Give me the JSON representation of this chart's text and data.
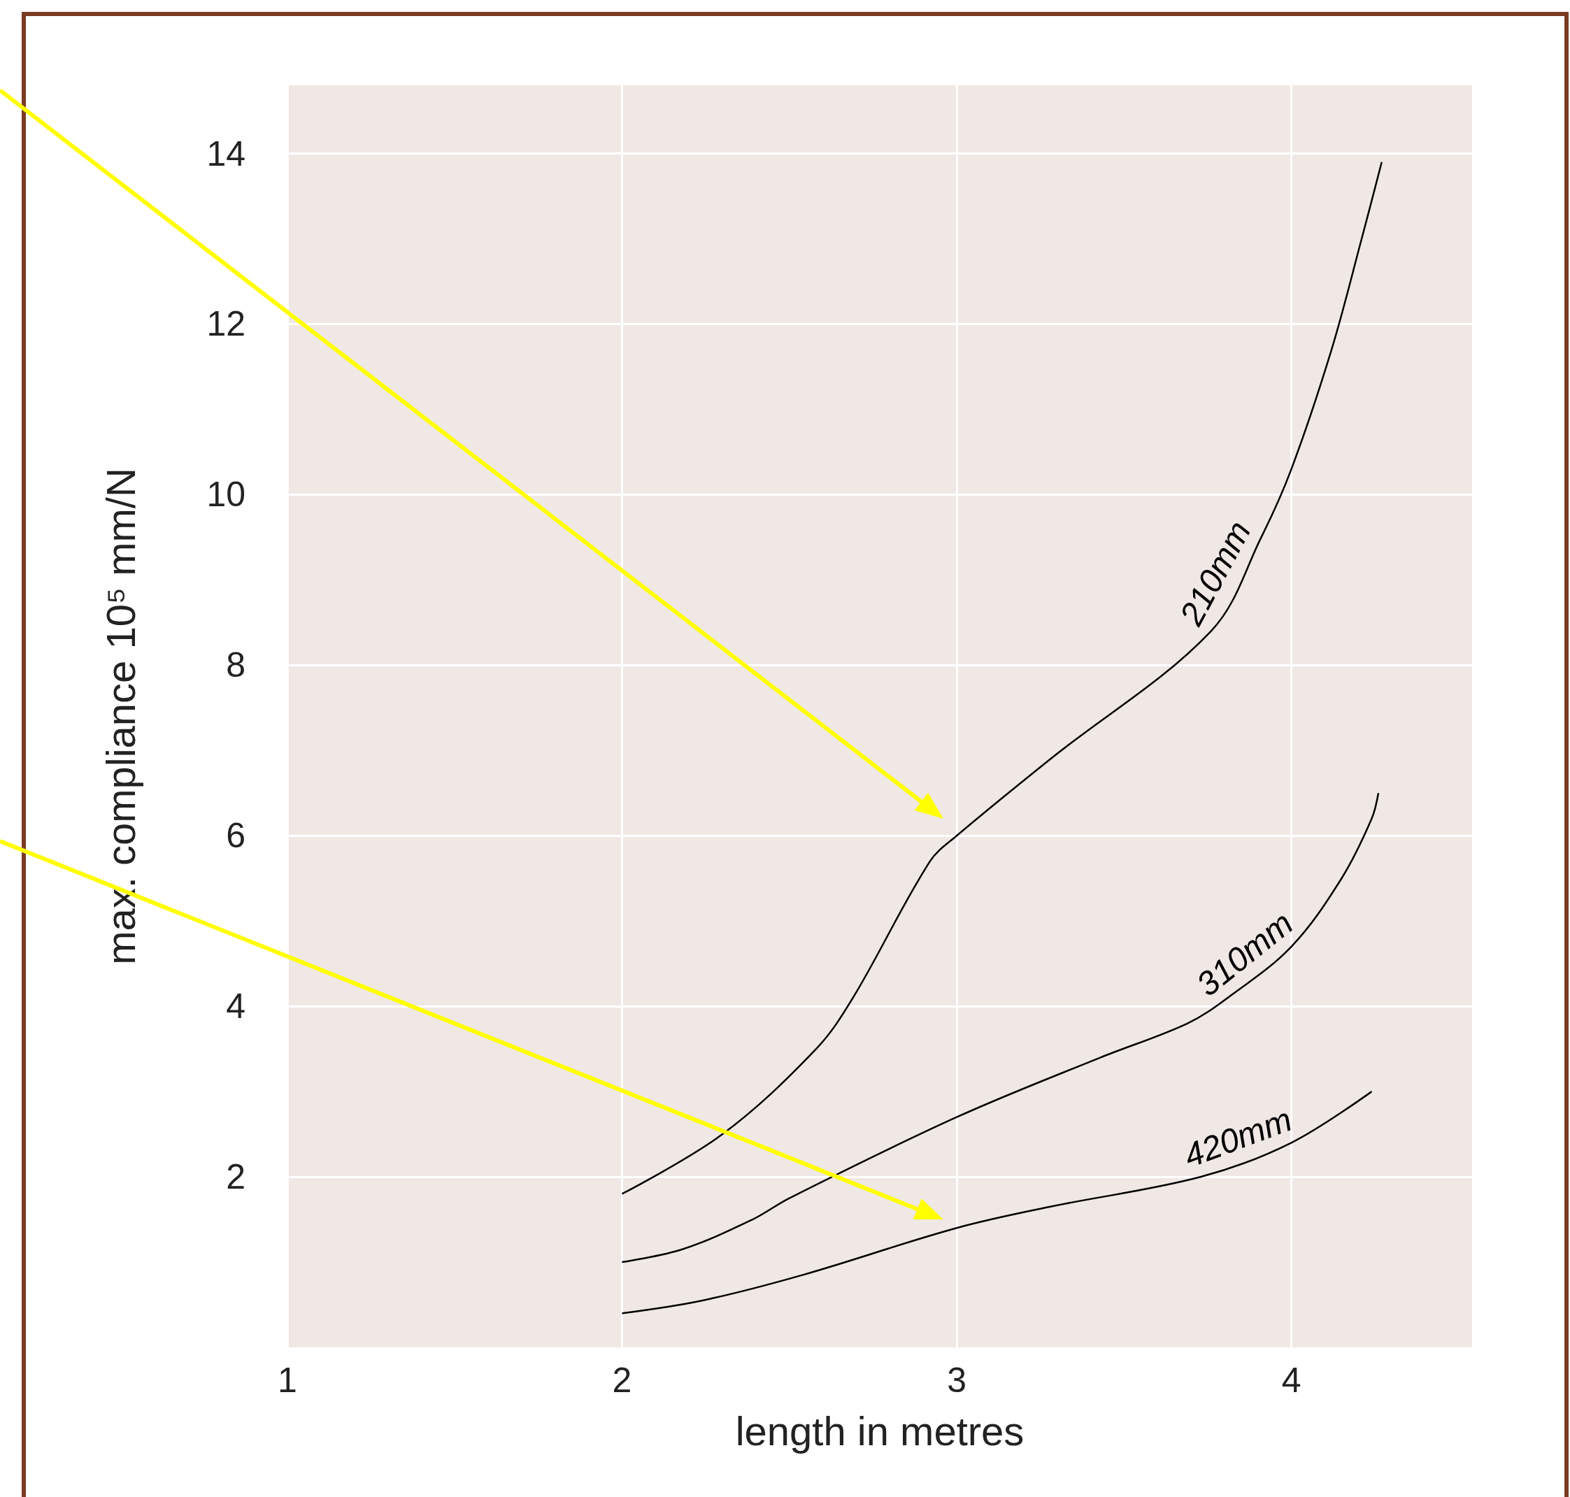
{
  "chart_data": {
    "type": "line",
    "xlabel": "length in metres",
    "ylabel": "max. compliance 10⁵ mm/N",
    "xlim": [
      1,
      4.54
    ],
    "ylim": [
      0,
      14.8
    ],
    "xticks": [
      1,
      2,
      3,
      4
    ],
    "yticks": [
      2,
      4,
      6,
      8,
      10,
      12,
      14
    ],
    "grid": true,
    "series": [
      {
        "name": "210mm",
        "color": "#000000",
        "x": [
          2,
          2.3,
          2.58,
          2.69,
          2.92,
          3,
          3.28,
          3.76,
          3.91,
          4,
          4.12,
          4.21,
          4.27
        ],
        "values": [
          1.8,
          2.5,
          3.5,
          4.1,
          5.7,
          6,
          6.9,
          8.4,
          9.5,
          10.3,
          11.7,
          13,
          13.9
        ]
      },
      {
        "name": "310mm",
        "color": "#000000",
        "x": [
          2,
          2.18,
          2.39,
          2.5,
          3,
          3.43,
          3.69,
          3.81,
          4,
          4.15,
          4.24,
          4.26
        ],
        "values": [
          1,
          1.15,
          1.5,
          1.75,
          2.7,
          3.4,
          3.8,
          4.1,
          4.7,
          5.5,
          6.2,
          6.5
        ]
      },
      {
        "name": "420mm",
        "color": "#000000",
        "x": [
          2,
          2.24,
          2.54,
          3,
          3.28,
          3.73,
          4,
          4.24
        ],
        "values": [
          0.4,
          0.55,
          0.85,
          1.4,
          1.65,
          2,
          2.4,
          3
        ]
      }
    ]
  }
}
